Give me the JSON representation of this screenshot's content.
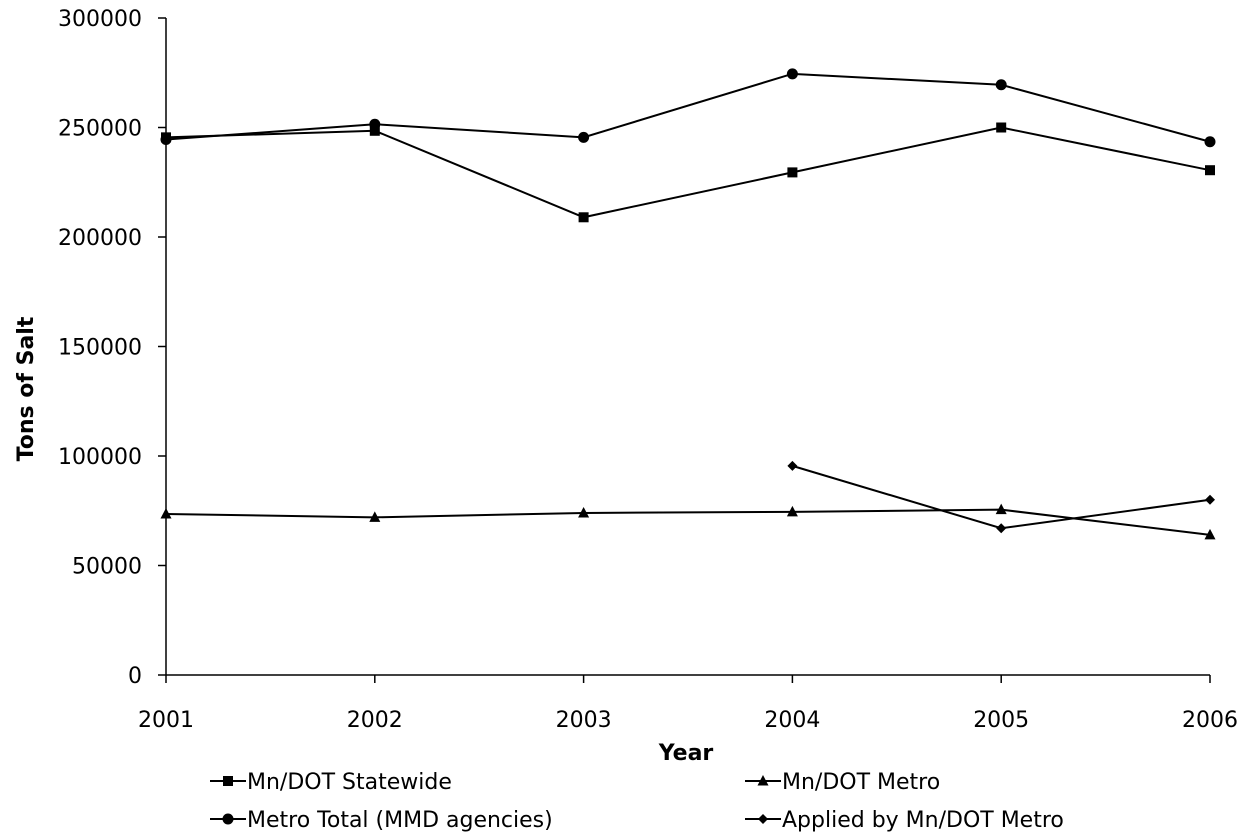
{
  "chart_data": {
    "type": "line",
    "title": "",
    "xlabel": "Year",
    "ylabel": "Tons of Salt",
    "x": [
      2001,
      2002,
      2003,
      2004,
      2005,
      2006
    ],
    "x_tick_labels": [
      "2001",
      "2002",
      "2003",
      "2004",
      "2005",
      "2006"
    ],
    "ylim": [
      0,
      300000
    ],
    "y_ticks": [
      0,
      50000,
      100000,
      150000,
      200000,
      250000,
      300000
    ],
    "y_tick_labels": [
      "0",
      "50000",
      "100000",
      "150000",
      "200000",
      "250000",
      "300000"
    ],
    "grid": false,
    "legend_position": "bottom",
    "series": [
      {
        "name": "Mn/DOT Statewide",
        "marker": "square",
        "values": [
          245500,
          248500,
          209000,
          229500,
          250000,
          230500
        ]
      },
      {
        "name": "Mn/DOT Metro",
        "marker": "triangle",
        "values": [
          73500,
          72000,
          74000,
          74500,
          75500,
          64000
        ]
      },
      {
        "name": "Metro Total (MMD agencies)",
        "marker": "circle",
        "values": [
          244500,
          251500,
          245500,
          274500,
          269500,
          243500
        ]
      },
      {
        "name": "Applied by Mn/DOT Metro",
        "marker": "diamond",
        "values": [
          null,
          null,
          null,
          95500,
          67000,
          80000
        ]
      }
    ],
    "colors": {
      "line": "#000000",
      "axis": "#000000",
      "background": "#ffffff"
    }
  }
}
